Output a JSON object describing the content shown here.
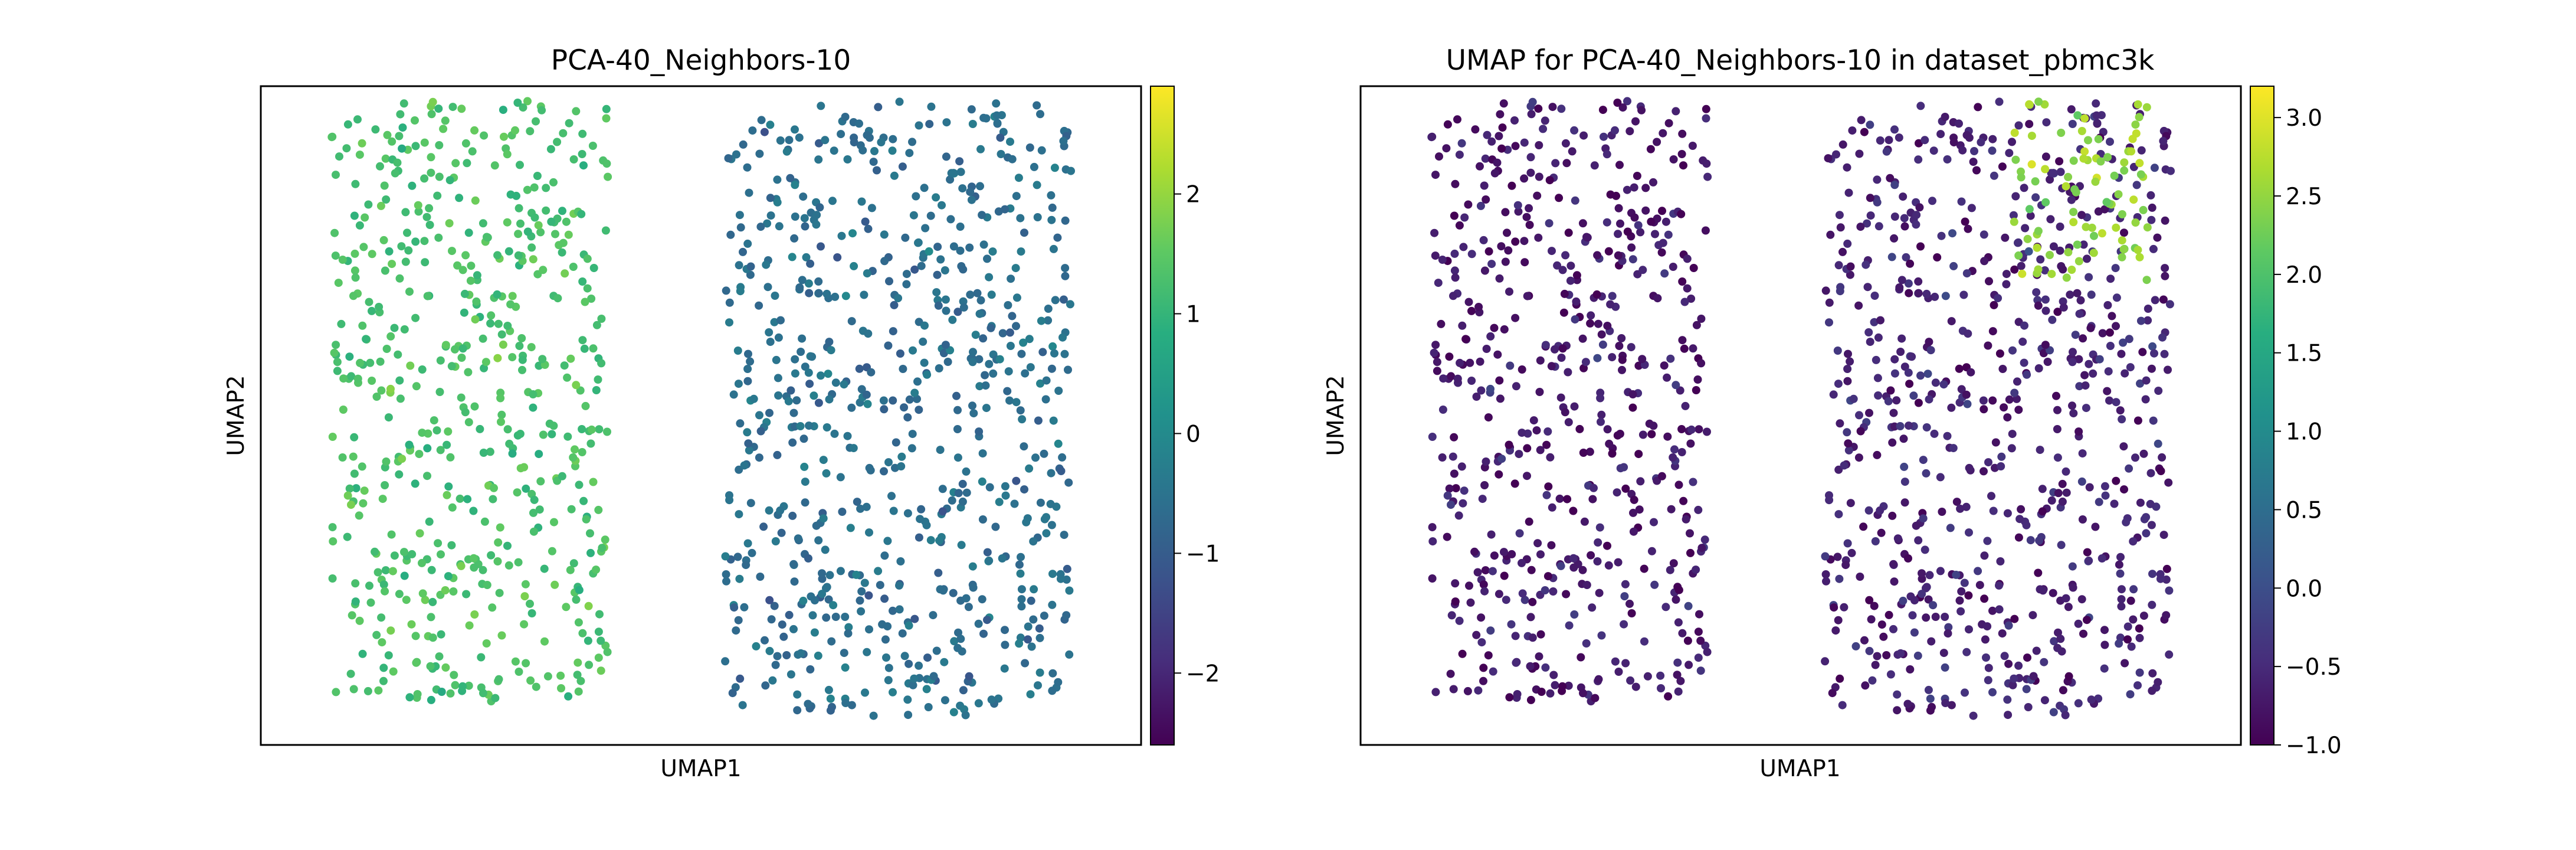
{
  "chart_data": [
    {
      "type": "scatter",
      "title": "PCA-40_Neighbors-10",
      "xlabel": "UMAP1",
      "ylabel": "UMAP2",
      "grid": false,
      "colormap": "viridis",
      "colorbar": {
        "range": [
          -2.6,
          2.9
        ],
        "ticks": [
          2,
          1,
          0,
          -1,
          -2
        ],
        "tick_labels": [
          "2",
          "1",
          "0",
          "−1",
          "−2"
        ]
      },
      "clusters": [
        {
          "x": [
            -6.5,
            -0.5
          ],
          "y": [
            -11.5,
            9.5
          ],
          "mean_color_value": 1.3
        },
        {
          "x": [
            2.0,
            9.5
          ],
          "y": [
            -12.0,
            9.5
          ],
          "mean_color_value": -0.6
        }
      ]
    },
    {
      "type": "scatter",
      "title": "UMAP for PCA-40_Neighbors-10 in dataset_pbmc3k",
      "xlabel": "UMAP1",
      "ylabel": "UMAP2",
      "grid": false,
      "colormap": "viridis",
      "colorbar": {
        "range": [
          -1.0,
          3.2
        ],
        "ticks": [
          3.0,
          2.5,
          2.0,
          1.5,
          1.0,
          0.5,
          0.0,
          -0.5,
          -1.0
        ],
        "tick_labels": [
          "3.0",
          "2.5",
          "2.0",
          "1.5",
          "1.0",
          "0.5",
          "0.0",
          "−0.5",
          "−1.0"
        ]
      },
      "clusters": [
        {
          "x": [
            -6.5,
            -0.5
          ],
          "y": [
            -11.5,
            9.5
          ],
          "mean_color_value": -0.7
        },
        {
          "x": [
            2.0,
            9.5
          ],
          "y": [
            -12.0,
            9.5
          ],
          "mean_color_value": -0.6
        },
        {
          "x": [
            6.0,
            9.0
          ],
          "y": [
            3.0,
            9.5
          ],
          "mean_color_value": 2.5
        }
      ]
    }
  ]
}
